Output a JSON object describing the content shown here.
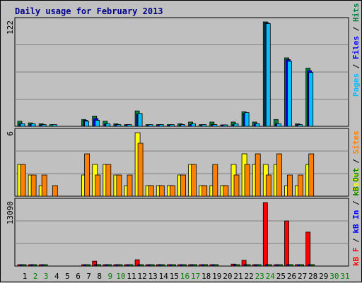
{
  "title": "Daily usage for February 2013",
  "colors": {
    "background": "#C0C0C0",
    "grid": "#808080",
    "pages": "#008040",
    "files": "#0000FF",
    "hits": "#00C0FF",
    "visits": "#FFFF00",
    "sites": "#FF8000",
    "kbin": "#0000FF",
    "kbout": "#008000",
    "kbf": "#FF0000",
    "title": "#00008B",
    "weekday_label": "#000000",
    "weekend_label": "#008000"
  },
  "right_labels": {
    "top": [
      {
        "text": "Pages",
        "color": "#00C0FF"
      },
      {
        "text": " / ",
        "color": "#000000"
      },
      {
        "text": "Files",
        "color": "#0000FF"
      },
      {
        "text": " / ",
        "color": "#000000"
      },
      {
        "text": "Hits",
        "color": "#008040"
      }
    ],
    "middle": [
      {
        "text": "Visits",
        "color": "#FFFF00"
      },
      {
        "text": " / ",
        "color": "#000000"
      },
      {
        "text": "Sites",
        "color": "#FF8000"
      }
    ],
    "bottom": [
      {
        "text": "kB F",
        "color": "#FF0000"
      },
      {
        "text": " / ",
        "color": "#000000"
      },
      {
        "text": "kB In",
        "color": "#0000FF"
      },
      {
        "text": " / ",
        "color": "#000000"
      },
      {
        "text": "kB Out",
        "color": "#008000"
      }
    ]
  },
  "chart_data": [
    {
      "type": "bar",
      "ymax_label": "122",
      "ymax": 122,
      "categories": [
        "1",
        "2",
        "3",
        "4",
        "5",
        "6",
        "7",
        "8",
        "9",
        "10",
        "11",
        "12",
        "13",
        "14",
        "15",
        "16",
        "17",
        "18",
        "19",
        "20",
        "21",
        "22",
        "23",
        "24",
        "25",
        "26",
        "27",
        "28",
        "29",
        "30",
        "31"
      ],
      "weekend_days": [
        2,
        3,
        9,
        10,
        16,
        17,
        23,
        24,
        30,
        31
      ],
      "series": [
        {
          "key": "pages",
          "values": [
            6,
            4,
            3,
            2,
            0,
            0,
            8,
            12,
            6,
            3,
            2,
            18,
            2,
            2,
            2,
            3,
            5,
            2,
            5,
            1,
            5,
            17,
            5,
            122,
            8,
            80,
            3,
            68,
            0,
            0,
            0
          ]
        },
        {
          "key": "files",
          "values": [
            3,
            2,
            2,
            0,
            0,
            0,
            7,
            9,
            3,
            2,
            2,
            14,
            1,
            2,
            1,
            2,
            2,
            1,
            2,
            1,
            2,
            15,
            3,
            121,
            3,
            78,
            2,
            65,
            0,
            0,
            0
          ]
        },
        {
          "key": "hits",
          "values": [
            3,
            3,
            2,
            2,
            0,
            0,
            6,
            7,
            3,
            2,
            2,
            15,
            2,
            2,
            2,
            2,
            3,
            2,
            2,
            1,
            3,
            16,
            3,
            120,
            3,
            76,
            2,
            63,
            0,
            0,
            0
          ]
        }
      ]
    },
    {
      "type": "bar",
      "ymax_label": "6",
      "ymax": 6,
      "categories": [
        "1",
        "2",
        "3",
        "4",
        "5",
        "6",
        "7",
        "8",
        "9",
        "10",
        "11",
        "12",
        "13",
        "14",
        "15",
        "16",
        "17",
        "18",
        "19",
        "20",
        "21",
        "22",
        "23",
        "24",
        "25",
        "26",
        "27",
        "28",
        "29",
        "30",
        "31"
      ],
      "series": [
        {
          "key": "visits",
          "values": [
            3,
            2,
            1,
            0,
            0,
            0,
            2,
            3,
            3,
            2,
            1,
            6,
            1,
            1,
            1,
            2,
            3,
            1,
            1,
            1,
            3,
            4,
            3,
            3,
            3,
            1,
            1,
            3,
            0,
            0,
            0
          ]
        },
        {
          "key": "sites",
          "values": [
            3,
            2,
            2,
            1,
            0,
            0,
            4,
            2,
            3,
            2,
            2,
            5,
            1,
            1,
            1,
            2,
            3,
            1,
            3,
            1,
            2,
            3,
            4,
            2,
            4,
            2,
            2,
            4,
            0,
            0,
            0
          ]
        }
      ]
    },
    {
      "type": "bar",
      "ymax_label": "13090",
      "ymax": 13090,
      "categories": [
        "1",
        "2",
        "3",
        "4",
        "5",
        "6",
        "7",
        "8",
        "9",
        "10",
        "11",
        "12",
        "13",
        "14",
        "15",
        "16",
        "17",
        "18",
        "19",
        "20",
        "21",
        "22",
        "23",
        "24",
        "25",
        "26",
        "27",
        "28",
        "29",
        "30",
        "31"
      ],
      "series": [
        {
          "key": "kbf",
          "values": [
            120,
            120,
            120,
            0,
            0,
            0,
            120,
            1000,
            120,
            120,
            120,
            1300,
            120,
            300,
            120,
            120,
            120,
            120,
            120,
            0,
            400,
            1200,
            120,
            13090,
            120,
            9300,
            120,
            7000,
            0,
            0,
            0
          ]
        },
        {
          "key": "kbin",
          "values": [
            100,
            100,
            100,
            0,
            0,
            0,
            100,
            100,
            100,
            100,
            100,
            100,
            100,
            100,
            100,
            100,
            100,
            100,
            100,
            0,
            100,
            100,
            100,
            100,
            100,
            100,
            100,
            100,
            0,
            0,
            0
          ]
        },
        {
          "key": "kbout",
          "values": [
            100,
            100,
            100,
            0,
            0,
            0,
            100,
            100,
            100,
            100,
            100,
            100,
            100,
            100,
            100,
            100,
            100,
            100,
            100,
            0,
            100,
            100,
            100,
            100,
            100,
            100,
            100,
            100,
            0,
            0,
            0
          ]
        }
      ]
    }
  ]
}
